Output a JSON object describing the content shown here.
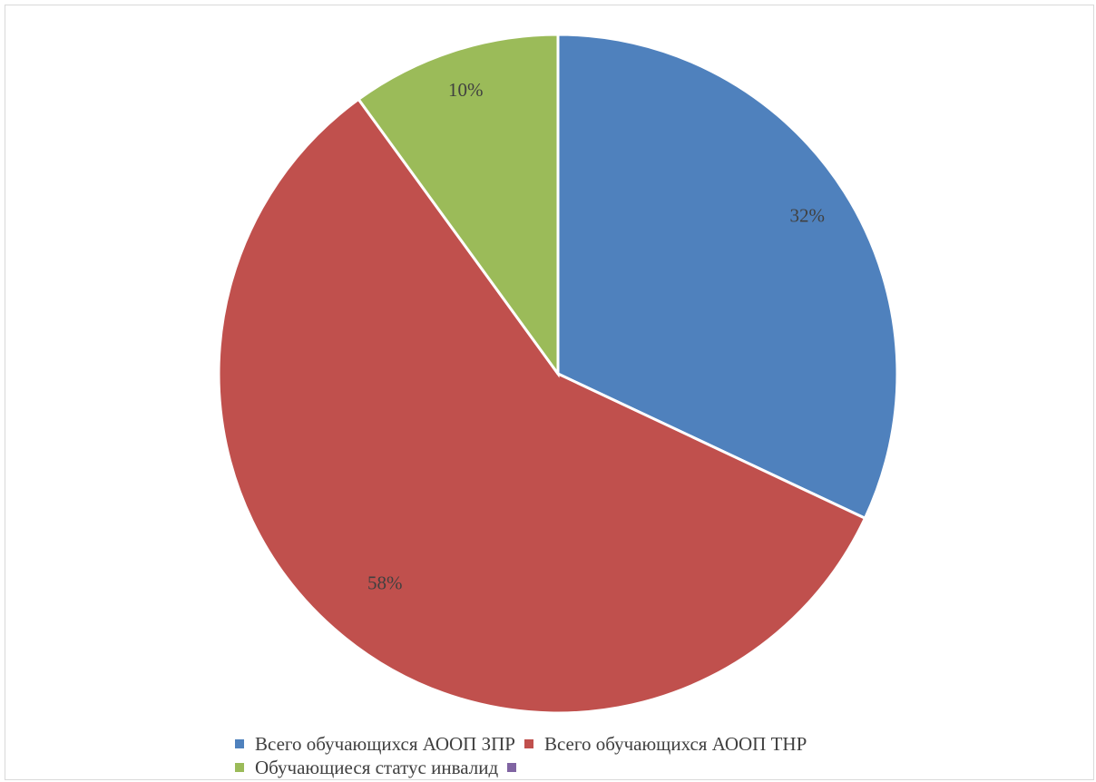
{
  "chart_data": {
    "type": "pie",
    "slices": [
      {
        "label": "Всего обучающихся АООП ЗПР",
        "value": 32,
        "data_label": "32%",
        "color": "#4f81bd"
      },
      {
        "label": "Всего обучающихся АООП ТНР",
        "value": 58,
        "data_label": "58%",
        "color": "#c0504d"
      },
      {
        "label": "Обучающиеся статус инвалид",
        "value": 10,
        "data_label": "10%",
        "color": "#9bbb59"
      },
      {
        "label": "",
        "value": 0,
        "data_label": "",
        "color": "#8064a2"
      }
    ],
    "legend_position": "bottom"
  }
}
